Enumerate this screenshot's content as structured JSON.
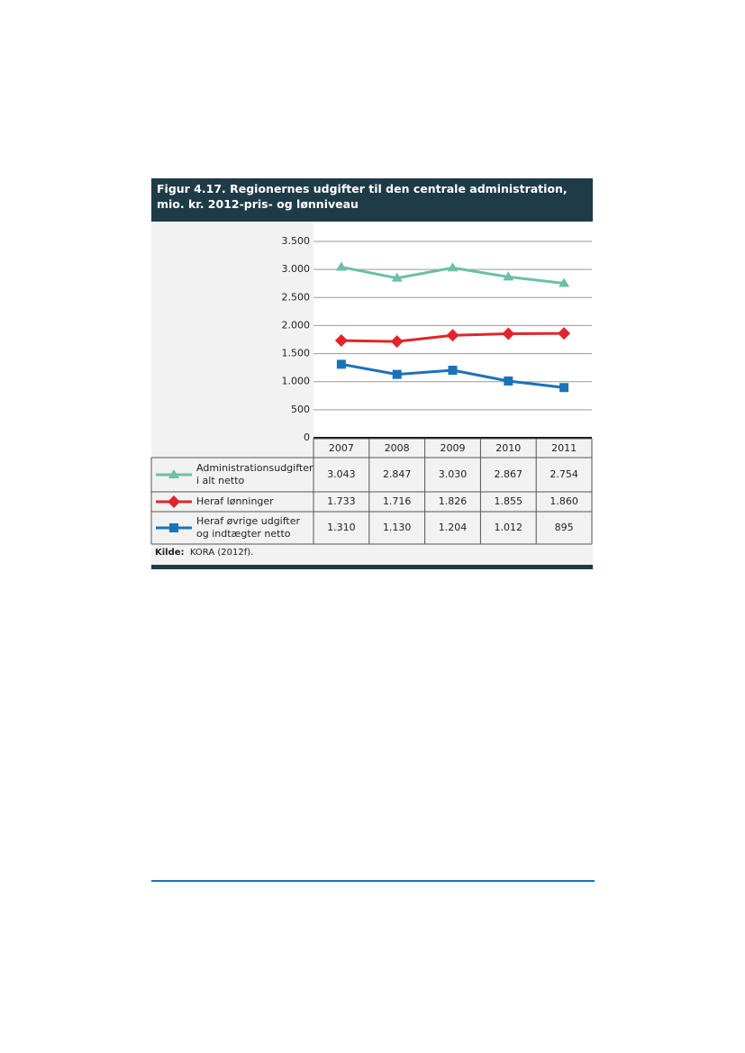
{
  "chart_data": {
    "type": "line",
    "title": "Figur 4.17. Regionernes udgifter til den centrale administration, mio. kr. 2012-pris- og lønniveau",
    "categories": [
      "2007",
      "2008",
      "2009",
      "2010",
      "2011"
    ],
    "series": [
      {
        "name": "Administrationsudgifter i alt netto",
        "color": "#6cbfa5",
        "marker": "triangle",
        "values": [
          3043,
          2847,
          3030,
          2867,
          2754
        ],
        "value_labels": [
          "3.043",
          "2.847",
          "3.030",
          "2.867",
          "2.754"
        ]
      },
      {
        "name": "Heraf lønninger",
        "color": "#e0262c",
        "marker": "diamond",
        "values": [
          1733,
          1716,
          1826,
          1855,
          1860
        ],
        "value_labels": [
          "1.733",
          "1.716",
          "1.826",
          "1.855",
          "1.860"
        ]
      },
      {
        "name": "Heraf øvrige udgifter og indtægter netto",
        "color": "#1a72b8",
        "marker": "square",
        "values": [
          1310,
          1130,
          1204,
          1012,
          895
        ],
        "value_labels": [
          "1.310",
          "1.130",
          "1.204",
          "1.012",
          "895"
        ]
      }
    ],
    "ylim": [
      0,
      3500
    ],
    "yticks": [
      0,
      {
        "value": 500,
        "label": "500"
      },
      {
        "value": 1000,
        "label": "1.000"
      },
      {
        "value": 1500,
        "label": "1.500"
      },
      {
        "value": 2000,
        "label": "2.000"
      },
      {
        "value": 2500,
        "label": "2.500"
      },
      {
        "value": 3000,
        "label": "3.000"
      },
      {
        "value": 3500,
        "label": "3.500"
      }
    ],
    "grid": true,
    "source_label": "Kilde:",
    "source": "KORA (2012f)."
  }
}
